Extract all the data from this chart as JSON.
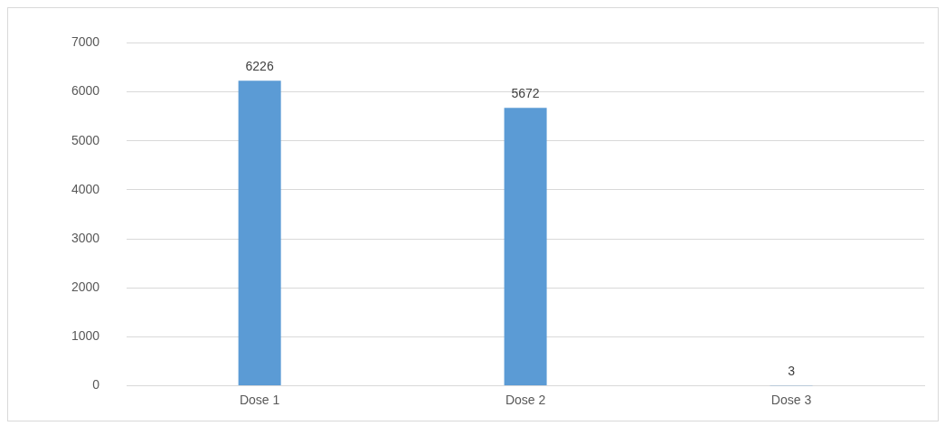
{
  "chart_data": {
    "type": "bar",
    "categories": [
      "Dose 1",
      "Dose 2",
      "Dose 3"
    ],
    "values": [
      6226,
      5672,
      3
    ],
    "color": "#5b9bd5",
    "ylim": [
      0,
      7000
    ],
    "yticks": [
      0,
      1000,
      2000,
      3000,
      4000,
      5000,
      6000,
      7000
    ],
    "grid": "y",
    "data_labels": true
  }
}
